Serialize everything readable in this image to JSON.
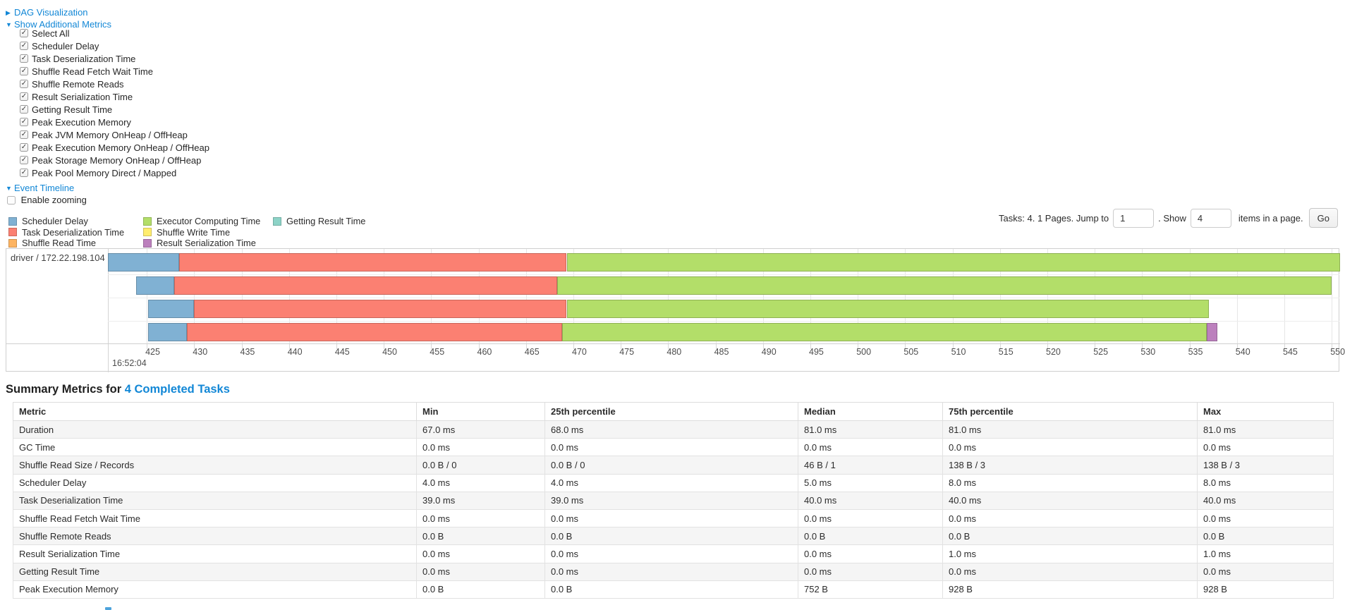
{
  "sections": {
    "dag": {
      "label": "DAG Visualization",
      "collapsed": true
    },
    "additional_metrics": {
      "label": "Show Additional Metrics",
      "collapsed": false
    },
    "event_timeline": {
      "label": "Event Timeline",
      "collapsed": false
    }
  },
  "metric_checkboxes": [
    {
      "label": "Select All",
      "checked": true
    },
    {
      "label": "Scheduler Delay",
      "checked": true
    },
    {
      "label": "Task Deserialization Time",
      "checked": true
    },
    {
      "label": "Shuffle Read Fetch Wait Time",
      "checked": true
    },
    {
      "label": "Shuffle Remote Reads",
      "checked": true
    },
    {
      "label": "Result Serialization Time",
      "checked": true
    },
    {
      "label": "Getting Result Time",
      "checked": true
    },
    {
      "label": "Peak Execution Memory",
      "checked": true
    },
    {
      "label": "Peak JVM Memory OnHeap / OffHeap",
      "checked": true
    },
    {
      "label": "Peak Execution Memory OnHeap / OffHeap",
      "checked": true
    },
    {
      "label": "Peak Storage Memory OnHeap / OffHeap",
      "checked": true
    },
    {
      "label": "Peak Pool Memory Direct / Mapped",
      "checked": true
    }
  ],
  "enable_zooming": {
    "label": "Enable zooming",
    "checked": false
  },
  "legend": [
    {
      "label": "Scheduler Delay",
      "color": "#80B1D3"
    },
    {
      "label": "Task Deserialization Time",
      "color": "#FB8072"
    },
    {
      "label": "Shuffle Read Time",
      "color": "#FDB462"
    },
    {
      "label": "Executor Computing Time",
      "color": "#B3DE69"
    },
    {
      "label": "Shuffle Write Time",
      "color": "#FFED6F"
    },
    {
      "label": "Result Serialization Time",
      "color": "#BC80BD"
    },
    {
      "label": "Getting Result Time",
      "color": "#8DD3C7"
    }
  ],
  "pagination": {
    "summary_text": "Tasks: 4. 1 Pages. Jump to",
    "jump_value": "1",
    "mid_text": ". Show",
    "show_value": "4",
    "suffix_text": "items in a page.",
    "go_label": "Go"
  },
  "chart_data": {
    "type": "timeline",
    "group_label": "driver / 172.22.198.104",
    "axis": {
      "min": 420.9,
      "max": 550.8,
      "tick_start": 425,
      "tick_step": 5,
      "tick_end": 550,
      "major_label": "16:52:04",
      "unit": "ms of second 16:52:04"
    },
    "series_colors": {
      "scheduler_delay": "#80B1D3",
      "task_deserialization": "#FB8072",
      "shuffle_read": "#FDB462",
      "executor_computing": "#B3DE69",
      "shuffle_write": "#FFED6F",
      "result_serialization": "#BC80BD",
      "getting_result": "#8DD3C7"
    },
    "tasks": [
      {
        "segments": [
          {
            "type": "scheduler_delay",
            "start": 420.9,
            "end": 428.4
          },
          {
            "type": "task_deserialization",
            "start": 428.4,
            "end": 469.3
          },
          {
            "type": "executor_computing",
            "start": 469.3,
            "end": 550.9
          }
        ]
      },
      {
        "segments": [
          {
            "type": "scheduler_delay",
            "start": 423.9,
            "end": 427.9
          },
          {
            "type": "task_deserialization",
            "start": 427.9,
            "end": 468.3
          },
          {
            "type": "executor_computing",
            "start": 468.3,
            "end": 550.0
          }
        ]
      },
      {
        "segments": [
          {
            "type": "scheduler_delay",
            "start": 425.1,
            "end": 430.0
          },
          {
            "type": "task_deserialization",
            "start": 430.0,
            "end": 469.3
          },
          {
            "type": "executor_computing",
            "start": 469.3,
            "end": 537.0
          }
        ]
      },
      {
        "segments": [
          {
            "type": "scheduler_delay",
            "start": 425.1,
            "end": 429.2
          },
          {
            "type": "task_deserialization",
            "start": 429.2,
            "end": 468.8
          },
          {
            "type": "executor_computing",
            "start": 468.8,
            "end": 536.8
          },
          {
            "type": "result_serialization",
            "start": 536.8,
            "end": 537.9
          }
        ]
      }
    ]
  },
  "summary": {
    "title_prefix": "Summary Metrics for ",
    "title_link": "4 Completed Tasks",
    "table": {
      "columns": [
        "Metric",
        "Min",
        "25th percentile",
        "Median",
        "75th percentile",
        "Max"
      ],
      "rows": [
        [
          "Duration",
          "67.0 ms",
          "68.0 ms",
          "81.0 ms",
          "81.0 ms",
          "81.0 ms"
        ],
        [
          "GC Time",
          "0.0 ms",
          "0.0 ms",
          "0.0 ms",
          "0.0 ms",
          "0.0 ms"
        ],
        [
          "Shuffle Read Size / Records",
          "0.0 B / 0",
          "0.0 B / 0",
          "46 B / 1",
          "138 B / 3",
          "138 B / 3"
        ],
        [
          "Scheduler Delay",
          "4.0 ms",
          "4.0 ms",
          "5.0 ms",
          "8.0 ms",
          "8.0 ms"
        ],
        [
          "Task Deserialization Time",
          "39.0 ms",
          "39.0 ms",
          "40.0 ms",
          "40.0 ms",
          "40.0 ms"
        ],
        [
          "Shuffle Read Fetch Wait Time",
          "0.0 ms",
          "0.0 ms",
          "0.0 ms",
          "0.0 ms",
          "0.0 ms"
        ],
        [
          "Shuffle Remote Reads",
          "0.0 B",
          "0.0 B",
          "0.0 B",
          "0.0 B",
          "0.0 B"
        ],
        [
          "Result Serialization Time",
          "0.0 ms",
          "0.0 ms",
          "0.0 ms",
          "1.0 ms",
          "1.0 ms"
        ],
        [
          "Getting Result Time",
          "0.0 ms",
          "0.0 ms",
          "0.0 ms",
          "0.0 ms",
          "0.0 ms"
        ],
        [
          "Peak Execution Memory",
          "0.0 B",
          "0.0 B",
          "752 B",
          "928 B",
          "928 B"
        ]
      ]
    }
  },
  "colors": {
    "link": "#1287d6",
    "table_stripe": "#f5f5f5",
    "chart_border": "#cfcfcf"
  }
}
